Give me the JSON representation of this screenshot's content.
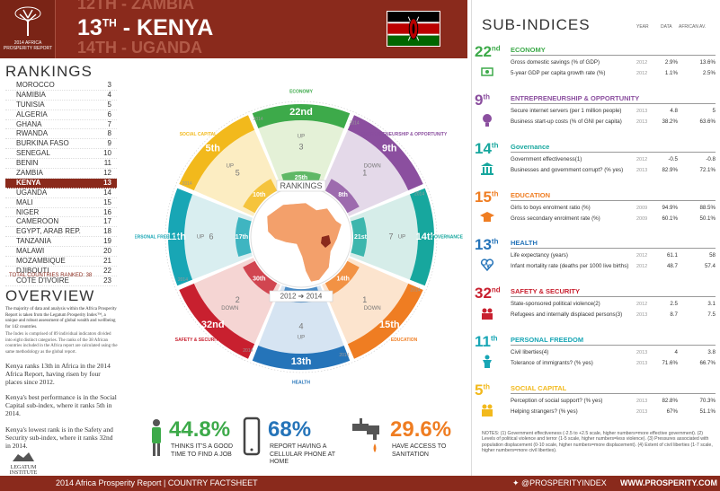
{
  "header": {
    "logo_text": "2014 AFRICA PROSPERITY REPORT",
    "ghost_top": "12TH - ZAMBIA",
    "rank_num": "13",
    "rank_sup": "TH",
    "country": "- KENYA",
    "ghost_bottom": "14TH - UGANDA"
  },
  "rankings": {
    "title": "RANKINGS",
    "rows": [
      {
        "name": "MOROCCO",
        "rank": "3"
      },
      {
        "name": "NAMIBIA",
        "rank": "4"
      },
      {
        "name": "TUNISIA",
        "rank": "5"
      },
      {
        "name": "ALGERIA",
        "rank": "6"
      },
      {
        "name": "GHANA",
        "rank": "7"
      },
      {
        "name": "RWANDA",
        "rank": "8"
      },
      {
        "name": "BURKINA FASO",
        "rank": "9"
      },
      {
        "name": "SENEGAL",
        "rank": "10"
      },
      {
        "name": "BENIN",
        "rank": "11"
      },
      {
        "name": "ZAMBIA",
        "rank": "12"
      },
      {
        "name": "KENYA",
        "rank": "13"
      },
      {
        "name": "UGANDA",
        "rank": "14"
      },
      {
        "name": "MALI",
        "rank": "15"
      },
      {
        "name": "NIGER",
        "rank": "16"
      },
      {
        "name": "CAMEROON",
        "rank": "17"
      },
      {
        "name": "EGYPT, ARAB REP.",
        "rank": "18"
      },
      {
        "name": "TANZANIA",
        "rank": "19"
      },
      {
        "name": "MALAWI",
        "rank": "20"
      },
      {
        "name": "MOZAMBIQUE",
        "rank": "21"
      },
      {
        "name": "DJIBOUTI",
        "rank": "22"
      },
      {
        "name": "COTE D'IVOIRE",
        "rank": "23"
      }
    ],
    "total": "TOTAL COUNTRIES RANKED: 38"
  },
  "overview": {
    "title": "OVERVIEW",
    "p1": "The majority of data and analysis within the Africa Prosperity Report is taken from the Legatum Prosperity Index™, a unique and robust assessment of global wealth and wellbeing for 142 countries.",
    "p2": "The Index is comprised of 89 individual indicators divided into eight distinct categories. The ranks of the 38 African countries included in the Africa report are calculated using the same methodology as the global report.",
    "p3": "Kenya ranks 13th in Africa in the 2014 Africa Report, having risen by four places since 2012.",
    "p4": "Kenya's best performance is in the Social Capital sub-index, where it ranks 5th in 2014.",
    "p5": "Kenya's lowest rank is in the Safety and Security sub-index, where it ranks 32nd in 2014.",
    "legatum": "LEGATUM INSTITUTE"
  },
  "wheel": {
    "center_title": "RANKINGS",
    "center_years": "2012 ➔ 2014",
    "segments": [
      {
        "key": "economy",
        "name": "ECONOMY",
        "color": "#3daa4a",
        "light": "#d8ebc6",
        "r2014": "22nd",
        "r2012": "25th",
        "dir": "UP",
        "change": "3"
      },
      {
        "key": "entre",
        "name": "ENTREPRENEURSHIP & OPPORTUNITY",
        "color": "#8b4f9f",
        "light": "#d9c9e0",
        "r2014": "9th",
        "r2012": "8th",
        "dir": "DOWN",
        "change": "1"
      },
      {
        "key": "gov",
        "name": "GOVERNANCE",
        "color": "#17a79e",
        "light": "#c5e5e0",
        "r2014": "14th",
        "r2012": "21st",
        "dir": "UP",
        "change": "7"
      },
      {
        "key": "edu",
        "name": "EDUCATION",
        "color": "#ef7d22",
        "light": "#fbd9b9",
        "r2014": "15th",
        "r2012": "14th",
        "dir": "DOWN",
        "change": "1"
      },
      {
        "key": "health",
        "name": "HEALTH",
        "color": "#2574b9",
        "light": "#c4d8ec",
        "r2014": "13th",
        "r2012": "17th",
        "dir": "UP",
        "change": "4"
      },
      {
        "key": "safety",
        "name": "SAFETY & SECURITY",
        "color": "#c8202f",
        "light": "#f1c3c0",
        "r2014": "32nd",
        "r2012": "30th",
        "dir": "DOWN",
        "change": "2"
      },
      {
        "key": "freedom",
        "name": "PERSONAL FREEDOM",
        "color": "#18a6b5",
        "light": "#c9e7ea",
        "r2014": "11th",
        "r2012": "17th",
        "dir": "UP",
        "change": "6"
      },
      {
        "key": "social",
        "name": "SOCIAL CAPITAL",
        "color": "#f2b91c",
        "light": "#fbe6a8",
        "r2014": "5th",
        "r2012": "10th",
        "dir": "UP",
        "change": "5"
      }
    ],
    "year_labels": "2014"
  },
  "stats": [
    {
      "value": "44.8%",
      "text": "THINKS IT'S A GOOD TIME TO FIND A JOB",
      "color": "#3daa4a"
    },
    {
      "value": "68%",
      "text": "REPORT HAVING A CELLULAR PHONE AT HOME",
      "color": "#2574b9"
    },
    {
      "value": "29.6%",
      "text": "HAVE ACCESS TO SANITATION",
      "color": "#ef7d22"
    }
  ],
  "footer": {
    "left": "2014 Africa Prosperity Report | COUNTRY FACTSHEET",
    "twitter": "@PROSPERITYINDEX",
    "web": "WWW.PROSPERITY.COM"
  },
  "sub": {
    "title": "SUB-INDICES",
    "col_year": "YEAR",
    "col_data": "DATA",
    "col_af": "AFRICAN AV.",
    "sections": [
      {
        "rank": "22",
        "sup": "nd",
        "name": "ECONOMY",
        "color": "#3daa4a",
        "icon": "money-icon",
        "rows": [
          {
            "nm": "Gross domestic savings (% of GDP)",
            "yr": "2012",
            "dt": "2.9%",
            "af": "13.6%"
          },
          {
            "nm": "5-year GDP per capita growth rate (%)",
            "yr": "2012",
            "dt": "1.1%",
            "af": "2.5%"
          }
        ]
      },
      {
        "rank": "9",
        "sup": "th",
        "name": "ENTREPRENEURSHIP & OPPORTUNITY",
        "color": "#8b4f9f",
        "icon": "lightbulb-icon",
        "rows": [
          {
            "nm": "Secure internet servers (per 1 million people)",
            "yr": "2013",
            "dt": "4.8",
            "af": "5"
          },
          {
            "nm": "Business start-up costs (% of GNI per capita)",
            "yr": "2013",
            "dt": "38.2%",
            "af": "63.6%"
          }
        ]
      },
      {
        "rank": "14",
        "sup": "th",
        "name": "Governance",
        "color": "#17a79e",
        "icon": "government-building-icon",
        "rows": [
          {
            "nm": "Government effectiveness(1)",
            "yr": "2012",
            "dt": "-0.5",
            "af": "-0.8"
          },
          {
            "nm": "Businesses and government corrupt? (% yes)",
            "yr": "2013",
            "dt": "82.9%",
            "af": "72.1%"
          }
        ]
      },
      {
        "rank": "15",
        "sup": "th",
        "name": "EDUCATION",
        "color": "#ef7d22",
        "icon": "graduation-cap-icon",
        "rows": [
          {
            "nm": "Girls to boys enrolment ratio (%)",
            "yr": "2009",
            "dt": "94.9%",
            "af": "88.5%"
          },
          {
            "nm": "Gross secondary enrolment rate (%)",
            "yr": "2009",
            "dt": "60.1%",
            "af": "50.1%"
          }
        ]
      },
      {
        "rank": "13",
        "sup": "th",
        "name": "HEALTH",
        "color": "#2574b9",
        "icon": "heartbeat-icon",
        "rows": [
          {
            "nm": "Life expectancy (years)",
            "yr": "2012",
            "dt": "61.1",
            "af": "58"
          },
          {
            "nm": "Infant mortality rate (deaths per 1000 live births)",
            "yr": "2012",
            "dt": "48.7",
            "af": "57.4"
          }
        ]
      },
      {
        "rank": "32",
        "sup": "nd",
        "name": "SAFETY & SECURITY",
        "color": "#c8202f",
        "icon": "shield-icon",
        "rows": [
          {
            "nm": "State-sponsored political violence(2)",
            "yr": "2012",
            "dt": "2.5",
            "af": "3.1"
          },
          {
            "nm": "Refugees and internally displaced persons(3)",
            "yr": "2013",
            "dt": "8.7",
            "af": "7.5"
          }
        ]
      },
      {
        "rank": "11",
        "sup": "th",
        "name": "PERSONAL FREEDOM",
        "color": "#18a6b5",
        "icon": "person-icon",
        "rows": [
          {
            "nm": "Civil liberties(4)",
            "yr": "2013",
            "dt": "4",
            "af": "3.8"
          },
          {
            "nm": "Tolerance of immigrants? (% yes)",
            "yr": "2013",
            "dt": "71.6%",
            "af": "66.7%"
          }
        ]
      },
      {
        "rank": "5",
        "sup": "th",
        "name": "SOCIAL CAPITAL",
        "color": "#f2b91c",
        "icon": "people-icon",
        "rows": [
          {
            "nm": "Perception of social support? (% yes)",
            "yr": "2013",
            "dt": "82.8%",
            "af": "70.3%"
          },
          {
            "nm": "Helping strangers? (% yes)",
            "yr": "2013",
            "dt": "67%",
            "af": "51.1%"
          }
        ]
      }
    ],
    "notes": "NOTES: (1) Government effectiveness (-2.5 to +2.5 scale, higher numbers=more effective government). (2) Levels of political violence and terror (1-5 scale, higher numbers=less violence). (3) Pressures associated with population displacement (0-10 scale, higher numbers=more displacement). (4) Extent of civil liberties (1-7 scale, higher numbers=more civil liberties)."
  }
}
